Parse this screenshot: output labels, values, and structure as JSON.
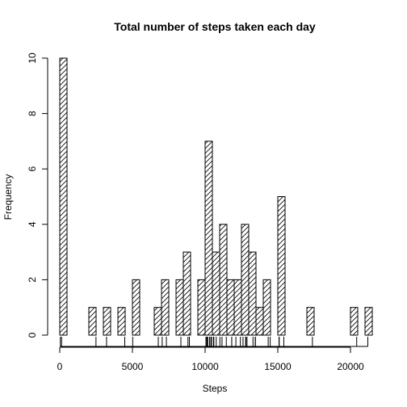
{
  "chart_data": {
    "type": "bar",
    "subtype": "histogram",
    "title": "Total number of steps taken each day",
    "xlabel": "Steps",
    "ylabel": "Frequency",
    "bin_width": 500,
    "xlim": [
      0,
      21500
    ],
    "ylim": [
      0,
      10
    ],
    "x_ticks": [
      0,
      5000,
      10000,
      15000,
      20000
    ],
    "y_ticks": [
      0,
      2,
      4,
      6,
      8,
      10
    ],
    "x_tick_labels": [
      "0",
      "5000",
      "10000",
      "15000",
      "20000"
    ],
    "y_tick_labels": [
      "0",
      "2",
      "4",
      "6",
      "8",
      "10"
    ],
    "fill_pattern": "diagonal-hatch",
    "bins": [
      {
        "start": 0,
        "end": 500,
        "count": 10
      },
      {
        "start": 2000,
        "end": 2500,
        "count": 1
      },
      {
        "start": 3000,
        "end": 3500,
        "count": 1
      },
      {
        "start": 4000,
        "end": 4500,
        "count": 1
      },
      {
        "start": 5000,
        "end": 5500,
        "count": 2
      },
      {
        "start": 6500,
        "end": 7000,
        "count": 1
      },
      {
        "start": 7000,
        "end": 7500,
        "count": 2
      },
      {
        "start": 8000,
        "end": 8500,
        "count": 2
      },
      {
        "start": 8500,
        "end": 9000,
        "count": 3
      },
      {
        "start": 9500,
        "end": 10000,
        "count": 2
      },
      {
        "start": 10000,
        "end": 10500,
        "count": 7
      },
      {
        "start": 10500,
        "end": 11000,
        "count": 3
      },
      {
        "start": 11000,
        "end": 11500,
        "count": 4
      },
      {
        "start": 11500,
        "end": 12000,
        "count": 2
      },
      {
        "start": 12000,
        "end": 12500,
        "count": 2
      },
      {
        "start": 12500,
        "end": 13000,
        "count": 4
      },
      {
        "start": 13000,
        "end": 13500,
        "count": 3
      },
      {
        "start": 13500,
        "end": 14000,
        "count": 1
      },
      {
        "start": 14000,
        "end": 14500,
        "count": 2
      },
      {
        "start": 15000,
        "end": 15500,
        "count": 5
      },
      {
        "start": 17000,
        "end": 17500,
        "count": 1
      },
      {
        "start": 20000,
        "end": 20500,
        "count": 1
      },
      {
        "start": 21000,
        "end": 21500,
        "count": 1
      }
    ],
    "rug": [
      41,
      126,
      2492,
      3219,
      4472,
      5018,
      6778,
      7047,
      7336,
      8334,
      8821,
      8918,
      10056,
      10119,
      10139,
      10183,
      10304,
      10395,
      10439,
      10571,
      10600,
      10765,
      11015,
      11162,
      11458,
      11829,
      11834,
      12116,
      12426,
      12608,
      12787,
      12811,
      12883,
      13294,
      13452,
      13460,
      14339,
      14478,
      15084,
      15098,
      15414,
      17382,
      20427,
      21194
    ]
  },
  "colors": {
    "bar_stroke": "#000000",
    "hatch": "#000000",
    "axis": "#000000",
    "background": "#ffffff"
  }
}
